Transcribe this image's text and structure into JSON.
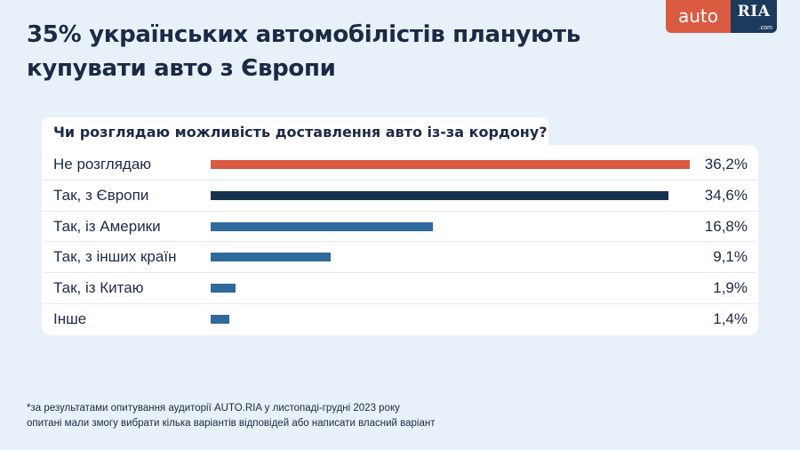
{
  "title": "35% українських автомобілістів планують купувати авто з Європи",
  "logo": {
    "auto": "auto",
    "ria": "RIA",
    "dotcom": ".com"
  },
  "chart_data": {
    "type": "bar",
    "orientation": "horizontal",
    "title": "Чи розглядаю можливість доставлення авто із-за кордону?",
    "categories": [
      "Не розглядаю",
      "Так, з Європи",
      "Так, із Америки",
      "Так, з інших країн",
      "Так, із Китаю",
      "Інше"
    ],
    "values": [
      36.2,
      34.6,
      16.8,
      9.1,
      1.9,
      1.4
    ],
    "value_labels": [
      "36,2%",
      "34,6%",
      "16,8%",
      "9,1%",
      "1,9%",
      "1,4%"
    ],
    "colors": [
      "#db5a42",
      "#152f4e",
      "#2e6a9b",
      "#2e6a9b",
      "#2e6a9b",
      "#2e6a9b"
    ],
    "unit": "%",
    "xlim": [
      0,
      36.2
    ]
  },
  "footnote": {
    "line1": "*за результатами опитування аудиторії AUTO.RIA у листопаді-грудні 2023 року",
    "line2": "опитані мали змогу вибрати кілька варіантів відповідей або написати власний варіант"
  }
}
